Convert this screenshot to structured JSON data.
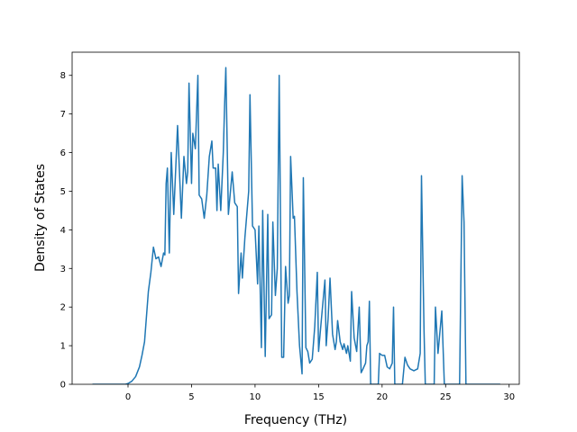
{
  "chart_data": {
    "type": "line",
    "xlabel": "Frequency (THz)",
    "ylabel": "Density of States",
    "xlim": [
      -4.4,
      30.8
    ],
    "ylim": [
      0,
      8.6
    ],
    "xticks": [
      0,
      5,
      10,
      15,
      20,
      25,
      30
    ],
    "yticks": [
      0,
      1,
      2,
      3,
      4,
      5,
      6,
      7,
      8
    ],
    "color": "#1f77b4",
    "x": [
      -2.8,
      -0.2,
      0,
      0.3,
      0.6,
      0.9,
      1.1,
      1.3,
      1.6,
      1.8,
      2.0,
      2.2,
      2.4,
      2.6,
      2.8,
      2.9,
      3.0,
      3.1,
      3.25,
      3.4,
      3.6,
      3.9,
      4.2,
      4.4,
      4.6,
      4.7,
      4.8,
      5.0,
      5.1,
      5.3,
      5.5,
      5.6,
      5.8,
      6.0,
      6.2,
      6.4,
      6.6,
      6.7,
      6.9,
      7.0,
      7.1,
      7.3,
      7.5,
      7.6,
      7.7,
      7.9,
      8.2,
      8.4,
      8.6,
      8.7,
      8.9,
      9.0,
      9.2,
      9.5,
      9.6,
      9.8,
      10.0,
      10.2,
      10.3,
      10.5,
      10.6,
      10.8,
      11.0,
      11.1,
      11.3,
      11.4,
      11.6,
      11.75,
      11.9,
      12.1,
      12.25,
      12.4,
      12.6,
      12.7,
      12.8,
      13.0,
      13.1,
      13.3,
      13.5,
      13.7,
      13.8,
      14.0,
      14.15,
      14.3,
      14.5,
      14.7,
      14.9,
      15.0,
      15.2,
      15.5,
      15.6,
      15.75,
      15.9,
      16.1,
      16.3,
      16.4,
      16.5,
      16.7,
      16.9,
      17.0,
      17.2,
      17.3,
      17.5,
      17.6,
      17.8,
      18.0,
      18.2,
      18.35,
      18.5,
      18.7,
      18.8,
      18.9,
      19.0,
      19.1,
      19.7,
      19.8,
      20.0,
      20.2,
      20.4,
      20.6,
      20.8,
      20.9,
      21.0,
      21.6,
      21.8,
      22.0,
      22.2,
      22.5,
      22.8,
      23.0,
      23.1,
      23.3,
      23.4,
      24.1,
      24.2,
      24.4,
      24.7,
      24.9,
      26.1,
      26.3,
      26.45,
      26.6,
      29.3
    ],
    "values": [
      0,
      0,
      0.02,
      0.08,
      0.2,
      0.45,
      0.75,
      1.1,
      2.4,
      2.9,
      3.55,
      3.25,
      3.3,
      3.05,
      3.4,
      3.35,
      5.2,
      5.6,
      3.4,
      6.0,
      4.4,
      6.7,
      4.3,
      5.9,
      5.2,
      5.5,
      7.8,
      5.2,
      6.5,
      6.1,
      8.0,
      4.9,
      4.8,
      4.3,
      4.9,
      5.9,
      6.3,
      5.6,
      5.6,
      4.5,
      5.7,
      4.5,
      6.0,
      7.2,
      8.2,
      4.4,
      5.5,
      4.7,
      4.6,
      2.35,
      3.4,
      2.75,
      3.8,
      5.0,
      7.5,
      4.1,
      4.0,
      2.6,
      4.1,
      0.95,
      4.5,
      0.72,
      4.4,
      1.7,
      1.8,
      4.2,
      2.3,
      3.0,
      8.0,
      0.7,
      0.7,
      3.05,
      2.1,
      2.3,
      5.9,
      4.3,
      4.35,
      2.4,
      1.0,
      0.27,
      5.35,
      0.95,
      0.85,
      0.55,
      0.65,
      1.5,
      2.9,
      0.85,
      1.6,
      2.7,
      1.0,
      1.7,
      2.75,
      1.3,
      0.9,
      1.1,
      1.65,
      1.1,
      0.9,
      1.05,
      0.8,
      1.0,
      0.6,
      2.4,
      1.2,
      0.85,
      2.0,
      0.3,
      0.4,
      0.55,
      1.0,
      1.1,
      2.15,
      0,
      0,
      0.8,
      0.75,
      0.75,
      0.45,
      0.4,
      0.55,
      2.0,
      0,
      0,
      0.7,
      0.5,
      0.4,
      0.35,
      0.4,
      0.8,
      5.4,
      1.4,
      0,
      0,
      2.0,
      0.8,
      1.9,
      0,
      0,
      5.4,
      4.2,
      0,
      0
    ]
  }
}
